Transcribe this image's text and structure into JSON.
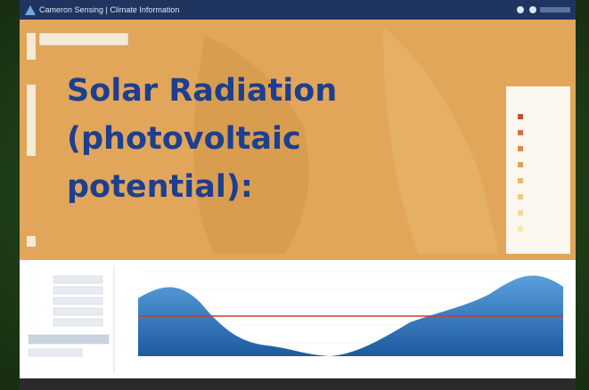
{
  "header": {
    "title": "Cameron Sensing | Climate Information"
  },
  "slide": {
    "title_lines": [
      "Solar Radiation",
      "(photovoltaic",
      "potential):"
    ]
  }
}
